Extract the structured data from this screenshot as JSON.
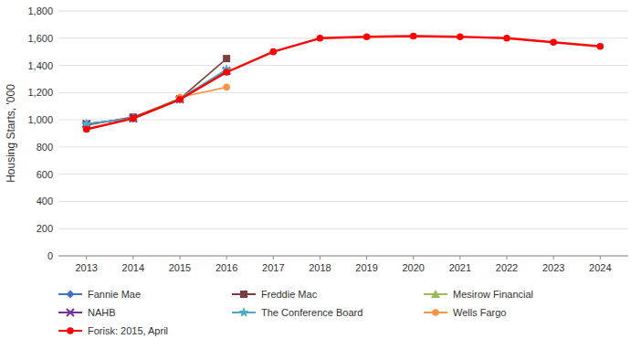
{
  "chart_data": {
    "type": "line",
    "ylabel": "Housing Starts, '000",
    "x": [
      2013,
      2014,
      2015,
      2016,
      2017,
      2018,
      2019,
      2020,
      2021,
      2022,
      2023,
      2024
    ],
    "series": [
      {
        "name": "Fannie Mae",
        "color": "#4472C4",
        "marker": "diamond",
        "values": [
          970,
          1010,
          1150,
          1360,
          null,
          null,
          null,
          null,
          null,
          null,
          null,
          null
        ]
      },
      {
        "name": "Freddie Mac",
        "color": "#7B3F3F",
        "marker": "square",
        "values": [
          960,
          1020,
          1155,
          1450,
          null,
          null,
          null,
          null,
          null,
          null,
          null,
          null
        ]
      },
      {
        "name": "Mesirow Financial",
        "color": "#9BBB59",
        "marker": "triangle",
        "values": [
          970,
          1010,
          1160,
          1360,
          null,
          null,
          null,
          null,
          null,
          null,
          null,
          null
        ]
      },
      {
        "name": "NAHB",
        "color": "#7030A0",
        "marker": "x",
        "values": [
          970,
          1010,
          1150,
          1360,
          null,
          null,
          null,
          null,
          null,
          null,
          null,
          null
        ]
      },
      {
        "name": "The Conference Board",
        "color": "#4BACC6",
        "marker": "star",
        "values": [
          970,
          1010,
          1155,
          1370,
          null,
          null,
          null,
          null,
          null,
          null,
          null,
          null
        ]
      },
      {
        "name": "Wells Fargo",
        "color": "#F79646",
        "marker": "circle",
        "values": [
          null,
          null,
          1165,
          1240,
          null,
          null,
          null,
          null,
          null,
          null,
          null,
          null
        ]
      },
      {
        "name": "Forisk: 2015, April",
        "color": "#FF0000",
        "marker": "circle",
        "values": [
          930,
          1010,
          1150,
          1350,
          1500,
          1600,
          1610,
          1615,
          1610,
          1600,
          1570,
          1540
        ]
      }
    ],
    "xlim": [
      2012.4,
      2024.6
    ],
    "xticks": [
      2013,
      2014,
      2015,
      2016,
      2017,
      2018,
      2019,
      2020,
      2021,
      2022,
      2023,
      2024
    ],
    "ylim": [
      0,
      1800
    ],
    "yticks": [
      0,
      200,
      400,
      600,
      800,
      {
        "value": 1000,
        "label": "1,000"
      },
      {
        "value": 1200,
        "label": "1,200"
      },
      {
        "value": 1400,
        "label": "1,400"
      },
      {
        "value": 1600,
        "label": "1,600"
      },
      {
        "value": 1800,
        "label": "1,800"
      }
    ],
    "grid": true,
    "legend": "bottom"
  }
}
